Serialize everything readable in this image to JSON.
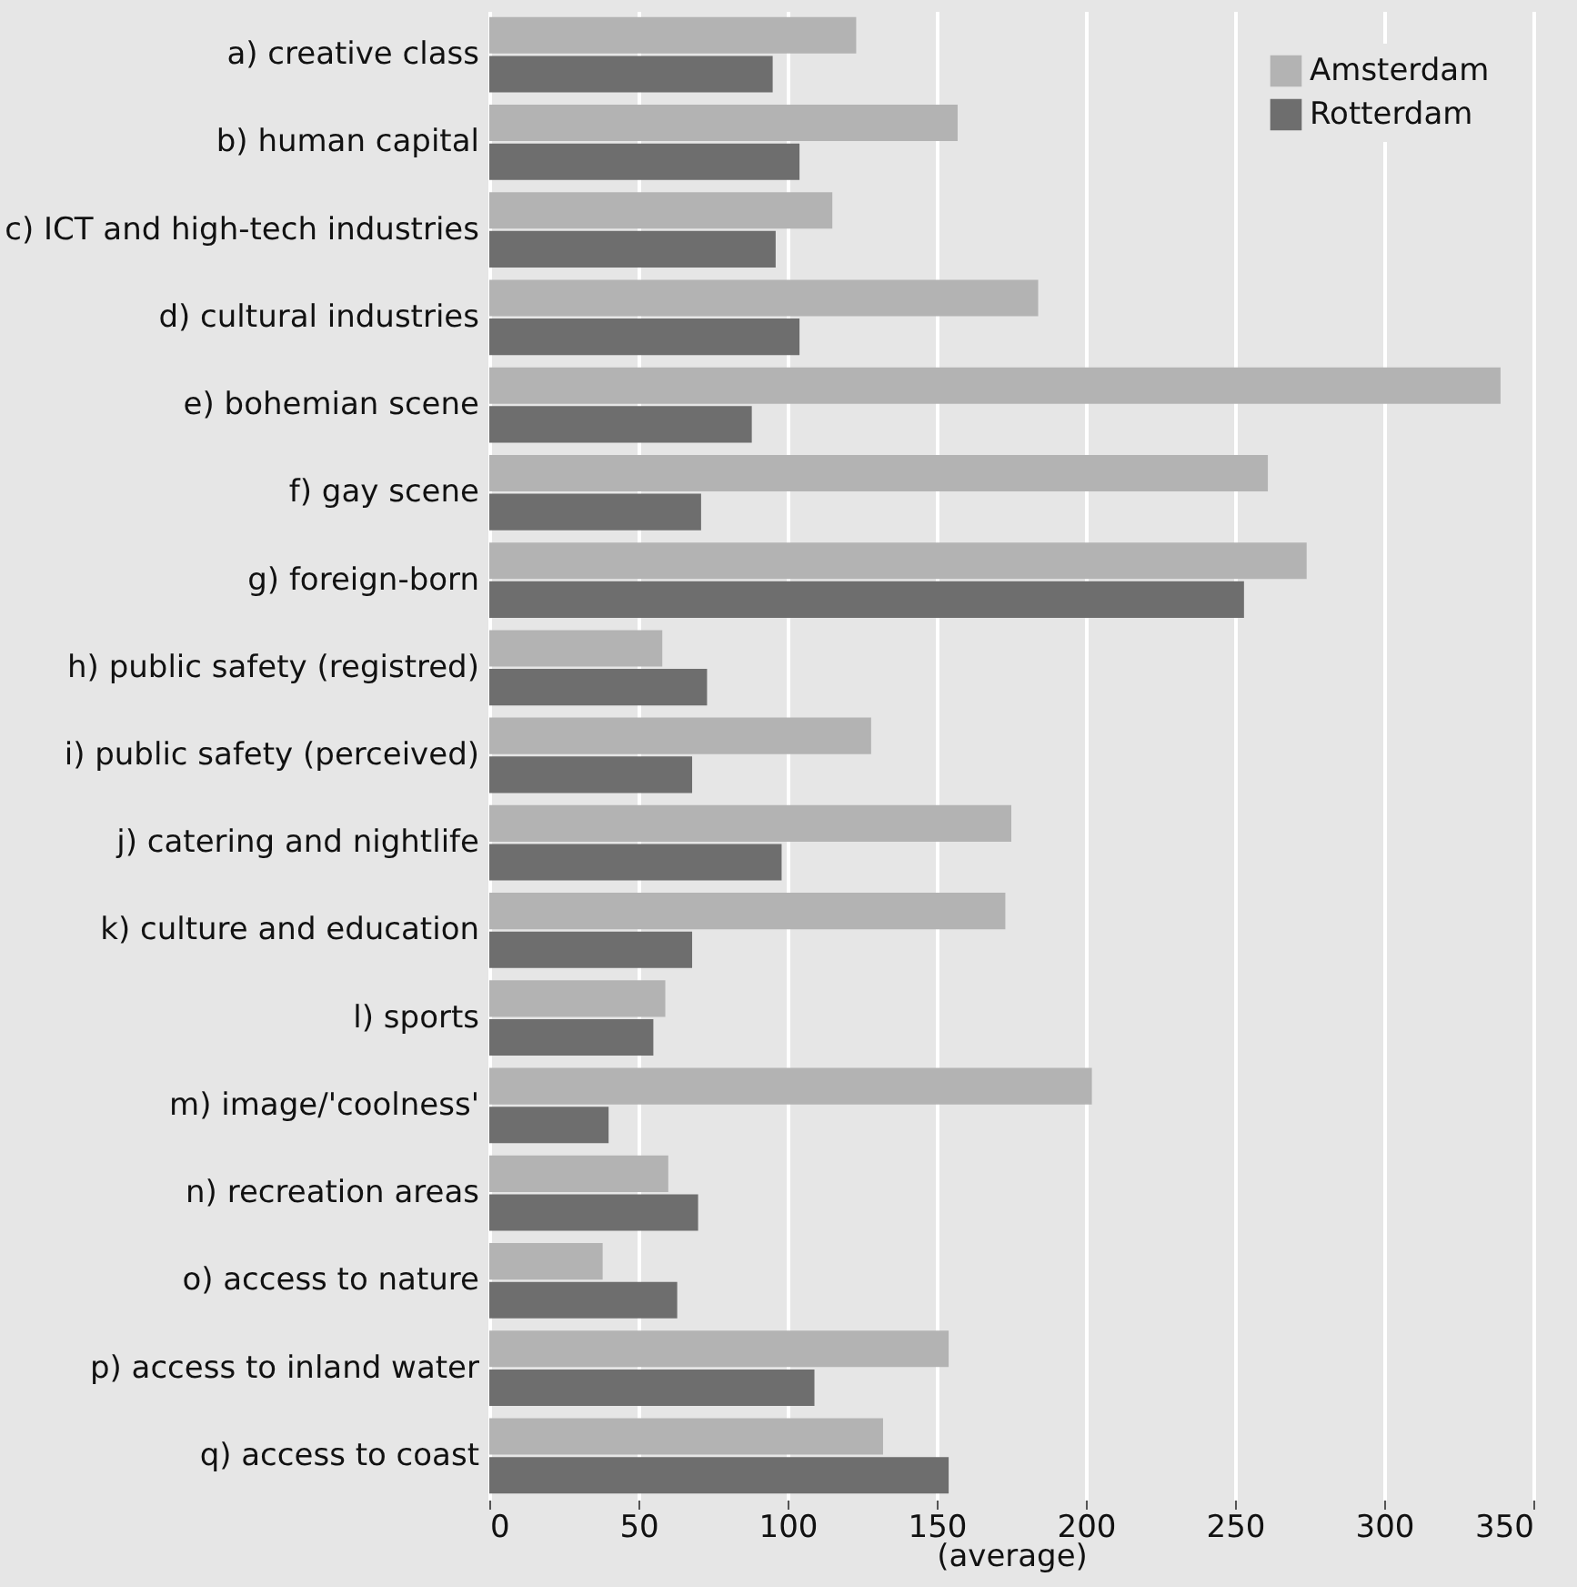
{
  "chart_data": {
    "type": "bar",
    "orientation": "horizontal",
    "xlabel": "(average)",
    "categories": [
      "a) creative class",
      "b) human capital",
      "c) ICT and high-tech industries",
      "d) cultural industries",
      "e) bohemian scene",
      "f) gay scene",
      "g) foreign-born",
      "h) public safety (registred)",
      "i) public safety (perceived)",
      "j) catering and nightlife",
      "k) culture and education",
      "l) sports",
      "m) image/'coolness'",
      "n) recreation areas",
      "o) access to nature",
      "p) access to inland water",
      "q) access to coast"
    ],
    "series": [
      {
        "name": "Amsterdam",
        "color": "#b3b3b3",
        "values": [
          123,
          157,
          115,
          184,
          339,
          261,
          274,
          58,
          128,
          175,
          173,
          59,
          202,
          60,
          38,
          154,
          132
        ]
      },
      {
        "name": "Rotterdam",
        "color": "#6e6e6e",
        "values": [
          95,
          104,
          96,
          104,
          88,
          71,
          253,
          73,
          68,
          98,
          68,
          55,
          40,
          70,
          63,
          109,
          154
        ]
      }
    ],
    "xlim": [
      0,
      350
    ],
    "xticks": [
      0,
      50,
      100,
      150,
      200,
      250,
      300,
      350
    ],
    "grid": "x",
    "legend": "top right"
  }
}
